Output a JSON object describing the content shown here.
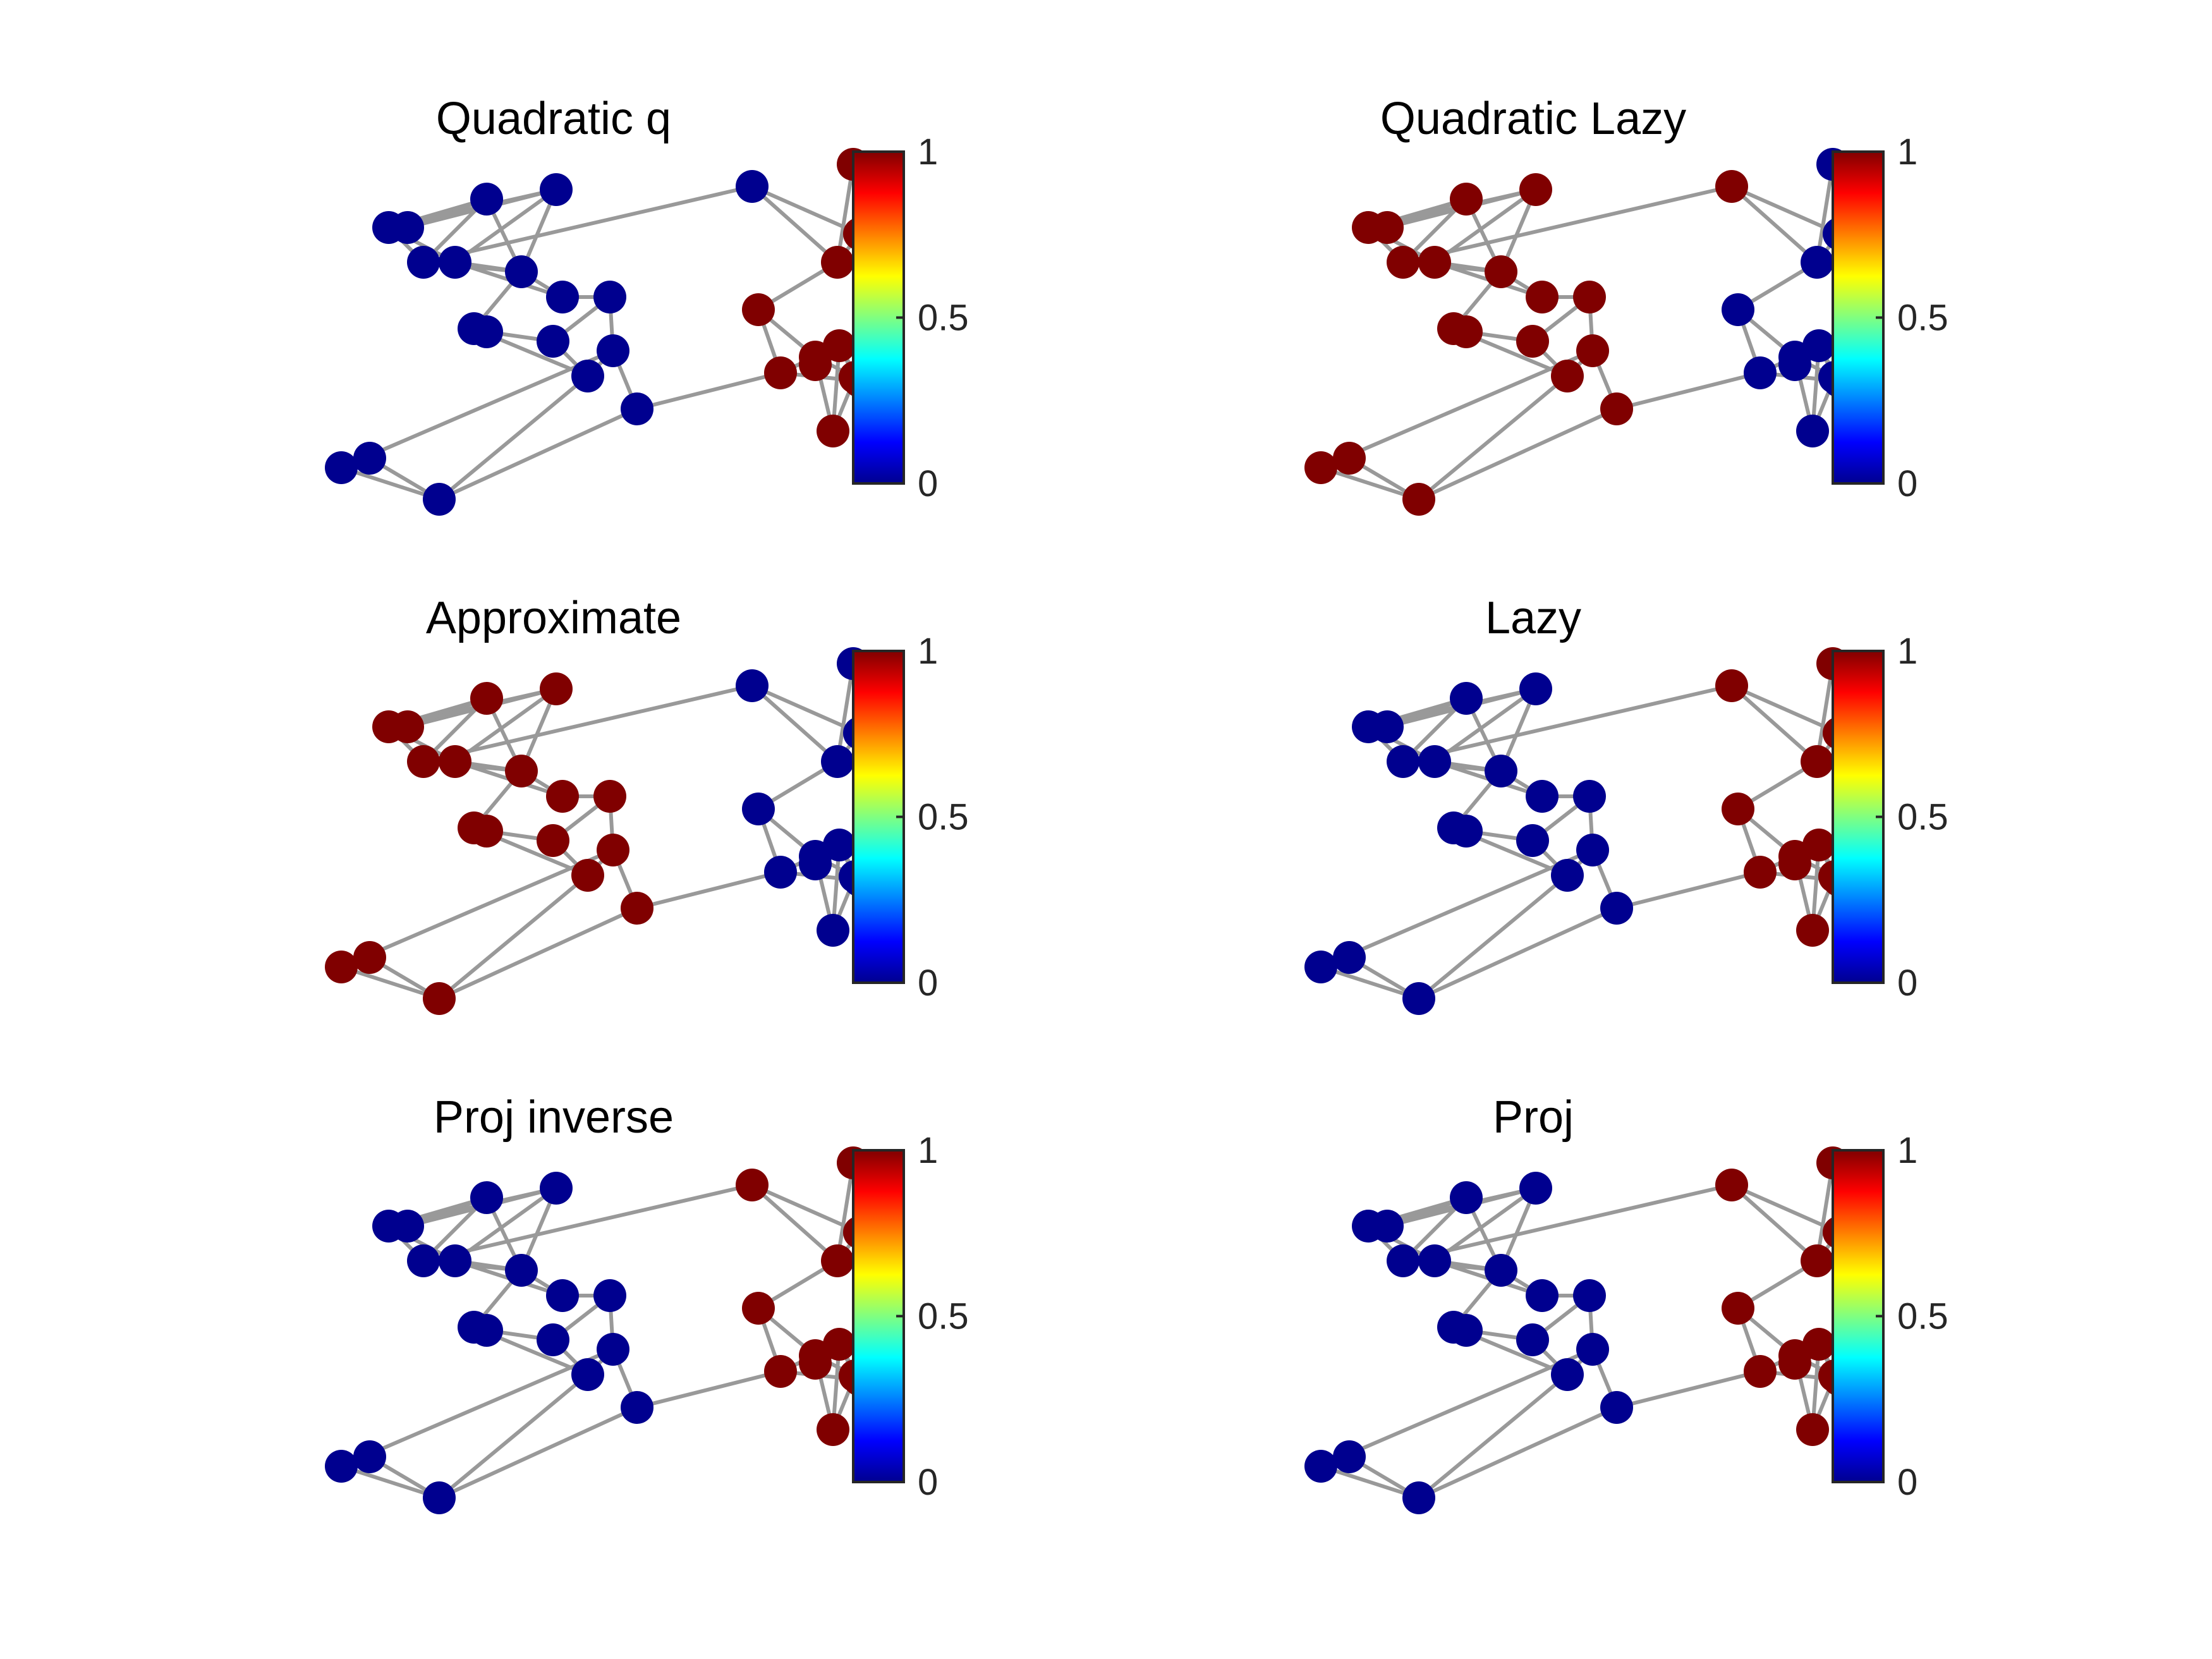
{
  "figure": {
    "colormap": "jet",
    "colorbar": {
      "ticks": [
        "0",
        "0.5",
        "1"
      ],
      "min": 0,
      "max": 1
    },
    "colors": {
      "low": "#00008f",
      "high": "#800000",
      "edge": "#999999"
    }
  },
  "graph": {
    "nodes": [
      {
        "id": 0,
        "group": "A"
      },
      {
        "id": 1,
        "group": "A"
      },
      {
        "id": 2,
        "group": "A"
      },
      {
        "id": 3,
        "group": "A"
      },
      {
        "id": 4,
        "group": "A"
      },
      {
        "id": 5,
        "group": "A"
      },
      {
        "id": 6,
        "group": "A"
      },
      {
        "id": 7,
        "group": "A"
      },
      {
        "id": 8,
        "group": "A"
      },
      {
        "id": 9,
        "group": "A"
      },
      {
        "id": 10,
        "group": "A"
      },
      {
        "id": 11,
        "group": "A"
      },
      {
        "id": 12,
        "group": "A"
      },
      {
        "id": 13,
        "group": "A"
      },
      {
        "id": 14,
        "group": "A"
      },
      {
        "id": 15,
        "group": "A"
      },
      {
        "id": 16,
        "group": "A"
      },
      {
        "id": 17,
        "group": "A"
      },
      {
        "id": 18,
        "group": "B"
      },
      {
        "id": 19,
        "group": "B"
      },
      {
        "id": 20,
        "group": "B"
      },
      {
        "id": 21,
        "group": "B"
      },
      {
        "id": 22,
        "group": "B"
      },
      {
        "id": 23,
        "group": "B"
      },
      {
        "id": 24,
        "group": "B"
      },
      {
        "id": 25,
        "group": "B"
      },
      {
        "id": 26,
        "group": "B"
      },
      {
        "id": 27,
        "group": "B"
      },
      {
        "id": 28,
        "group": "B"
      },
      {
        "id": 29,
        "group": "B"
      },
      {
        "id": 30,
        "group": "B"
      }
    ],
    "edges": [
      [
        0,
        1
      ],
      [
        0,
        3
      ],
      [
        0,
        5
      ],
      [
        1,
        4
      ],
      [
        1,
        5
      ],
      [
        2,
        3
      ],
      [
        2,
        6
      ],
      [
        2,
        1
      ],
      [
        3,
        6
      ],
      [
        4,
        6
      ],
      [
        4,
        7
      ],
      [
        2,
        18
      ],
      [
        6,
        7
      ],
      [
        6,
        8
      ],
      [
        8,
        9
      ],
      [
        7,
        11
      ],
      [
        8,
        12
      ],
      [
        9,
        10
      ],
      [
        10,
        11
      ],
      [
        10,
        12
      ],
      [
        11,
        13
      ],
      [
        12,
        13
      ],
      [
        12,
        14
      ],
      [
        13,
        17
      ],
      [
        14,
        15
      ],
      [
        14,
        16
      ],
      [
        14,
        17
      ],
      [
        13,
        16
      ],
      [
        15,
        16
      ],
      [
        4,
        5
      ],
      [
        1,
        3
      ],
      [
        5,
        6
      ],
      [
        18,
        20
      ],
      [
        18,
        21
      ],
      [
        19,
        20
      ],
      [
        19,
        21
      ],
      [
        19,
        22
      ],
      [
        20,
        22
      ],
      [
        21,
        23
      ],
      [
        20,
        21
      ],
      [
        23,
        24
      ],
      [
        23,
        25
      ],
      [
        24,
        25
      ],
      [
        24,
        27
      ],
      [
        25,
        28
      ],
      [
        25,
        29
      ],
      [
        26,
        28
      ],
      [
        26,
        27
      ],
      [
        26,
        29
      ],
      [
        27,
        28
      ],
      [
        28,
        29
      ],
      [
        24,
        26
      ],
      [
        17,
        24
      ]
    ]
  },
  "panels": [
    {
      "title": "Quadratic q",
      "values": [
        0,
        0,
        0,
        0,
        0,
        0,
        0,
        0,
        0,
        0,
        0,
        0,
        0,
        0,
        0,
        0,
        0,
        0,
        0,
        1,
        1,
        1,
        1,
        1,
        1,
        1,
        1,
        1,
        1,
        1,
        1
      ]
    },
    {
      "title": "Quadratic Lazy",
      "values": [
        1,
        1,
        1,
        1,
        1,
        1,
        1,
        1,
        1,
        1,
        1,
        1,
        1,
        1,
        1,
        1,
        1,
        1,
        1,
        0,
        0,
        0,
        0,
        0,
        0,
        0,
        0,
        0,
        0,
        0,
        0
      ]
    },
    {
      "title": "Approximate",
      "values": [
        1,
        1,
        1,
        1,
        1,
        1,
        1,
        1,
        1,
        1,
        1,
        1,
        1,
        1,
        1,
        1,
        1,
        1,
        0,
        0,
        0,
        0,
        0,
        0,
        0,
        0,
        0,
        0,
        0,
        0,
        0
      ]
    },
    {
      "title": "Lazy",
      "values": [
        0,
        0,
        0,
        0,
        0,
        0,
        0,
        0,
        0,
        0,
        0,
        0,
        0,
        0,
        0,
        0,
        0,
        0,
        1,
        1,
        1,
        1,
        1,
        1,
        1,
        1,
        1,
        1,
        1,
        1,
        1
      ]
    },
    {
      "title": "Proj inverse",
      "values": [
        0,
        0,
        0,
        0,
        0,
        0,
        0,
        0,
        0,
        0,
        0,
        0,
        0,
        0,
        0,
        0,
        0,
        0,
        1,
        1,
        1,
        1,
        1,
        1,
        1,
        1,
        1,
        1,
        1,
        1,
        1
      ]
    },
    {
      "title": "Proj",
      "values": [
        0,
        0,
        0,
        0,
        0,
        0,
        0,
        0,
        0,
        0,
        0,
        0,
        0,
        0,
        0,
        0,
        0,
        0,
        1,
        1,
        1,
        1,
        1,
        1,
        1,
        1,
        1,
        1,
        1,
        1,
        1
      ]
    }
  ]
}
